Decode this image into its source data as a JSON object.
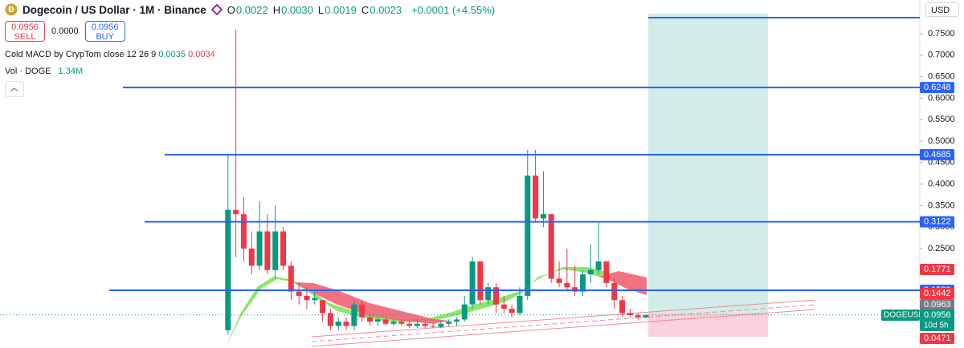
{
  "header": {
    "title": "Dogecoin / US Dollar · 1M · Binance",
    "ohlc": [
      {
        "key": "O",
        "value": "0.0022"
      },
      {
        "key": "H",
        "value": "0.0030"
      },
      {
        "key": "L",
        "value": "0.0019"
      },
      {
        "key": "C",
        "value": "0.0023"
      }
    ],
    "change": "+0.0001 (+4.55%)",
    "currency": "USD"
  },
  "trade": {
    "sell_price": "0.0956",
    "sell_label": "SELL",
    "spread": "0.0000",
    "buy_price": "0.0956",
    "buy_label": "BUY"
  },
  "indicators": [
    {
      "name": "Cold MACD by CrypTom close 12 26 9",
      "values": [
        "0.0035",
        "0.0034"
      ]
    },
    {
      "name": "Vol · DOGE",
      "values": [
        "1.34M"
      ]
    }
  ],
  "chart_data": {
    "type": "candlestick",
    "open": [
      0.003,
      0.06,
      0.34,
      0.33,
      0.25,
      0.21,
      0.29,
      0.2,
      0.29,
      0.21,
      0.15,
      0.14,
      0.13,
      0.13,
      0.1,
      0.07,
      0.08,
      0.07,
      0.12,
      0.09,
      0.08,
      0.085,
      0.075,
      0.08,
      0.075,
      0.07,
      0.075,
      0.07,
      0.068,
      0.075,
      0.08,
      0.085,
      0.12,
      0.22,
      0.13,
      0.16,
      0.12,
      0.11,
      0.1,
      0.14,
      0.42,
      0.32,
      0.33,
      0.18,
      0.17,
      0.16,
      0.15,
      0.19,
      0.2,
      0.22,
      0.17,
      0.13,
      0.1,
      0.095,
      0.09
    ],
    "high": [
      0.01,
      0.47,
      0.76,
      0.37,
      0.29,
      0.36,
      0.33,
      0.35,
      0.3,
      0.22,
      0.17,
      0.16,
      0.15,
      0.13,
      0.11,
      0.09,
      0.09,
      0.13,
      0.13,
      0.1,
      0.09,
      0.09,
      0.085,
      0.085,
      0.08,
      0.08,
      0.08,
      0.075,
      0.08,
      0.085,
      0.09,
      0.14,
      0.23,
      0.22,
      0.17,
      0.17,
      0.14,
      0.12,
      0.16,
      0.48,
      0.48,
      0.43,
      0.33,
      0.22,
      0.25,
      0.21,
      0.2,
      0.26,
      0.31,
      0.22,
      0.18,
      0.14,
      0.11,
      0.1,
      0.096
    ],
    "low": [
      0.002,
      0.05,
      0.23,
      0.22,
      0.19,
      0.2,
      0.19,
      0.18,
      0.2,
      0.13,
      0.12,
      0.11,
      0.12,
      0.08,
      0.06,
      0.06,
      0.06,
      0.06,
      0.08,
      0.07,
      0.07,
      0.07,
      0.07,
      0.07,
      0.065,
      0.065,
      0.065,
      0.065,
      0.065,
      0.07,
      0.07,
      0.08,
      0.11,
      0.12,
      0.12,
      0.1,
      0.1,
      0.09,
      0.095,
      0.13,
      0.31,
      0.3,
      0.17,
      0.16,
      0.15,
      0.14,
      0.14,
      0.17,
      0.19,
      0.16,
      0.11,
      0.09,
      0.09,
      0.085,
      0.088
    ],
    "close": [
      0.008,
      0.34,
      0.33,
      0.25,
      0.21,
      0.29,
      0.2,
      0.29,
      0.21,
      0.15,
      0.14,
      0.13,
      0.135,
      0.1,
      0.07,
      0.08,
      0.07,
      0.12,
      0.09,
      0.08,
      0.085,
      0.075,
      0.08,
      0.075,
      0.07,
      0.075,
      0.07,
      0.068,
      0.075,
      0.08,
      0.085,
      0.12,
      0.22,
      0.13,
      0.16,
      0.12,
      0.11,
      0.1,
      0.14,
      0.42,
      0.32,
      0.33,
      0.18,
      0.17,
      0.16,
      0.15,
      0.19,
      0.2,
      0.22,
      0.17,
      0.13,
      0.1,
      0.095,
      0.09,
      0.0956
    ],
    "up_color": "#089981",
    "down_color": "#f23645",
    "ylim": [
      0,
      0.8284
    ],
    "yticks": [
      {
        "value": 0.75,
        "label": "0.7500"
      },
      {
        "value": 0.7,
        "label": "0.7000"
      },
      {
        "value": 0.65,
        "label": "0.6500"
      },
      {
        "value": 0.6,
        "label": "0.6000"
      },
      {
        "value": 0.55,
        "label": "0.5500"
      },
      {
        "value": 0.5,
        "label": "0.5000"
      },
      {
        "value": 0.45,
        "label": "0.4500"
      },
      {
        "value": 0.4,
        "label": "0.4000"
      },
      {
        "value": 0.35,
        "label": "0.3500"
      },
      {
        "value": 0.3,
        "label": "0.3000"
      },
      {
        "value": 0.25,
        "label": "0.2500"
      }
    ],
    "levels": [
      0.7873,
      0.6248,
      0.4685,
      0.3122,
      0.1529
    ],
    "level_color": "#2962ff",
    "price_labels": [
      {
        "value": 0.1771,
        "color": "#f23645"
      },
      {
        "value": 0.1442,
        "color": "#f23645"
      },
      {
        "value": 0.0963,
        "color": "#787b86"
      },
      {
        "value": 0.0471,
        "color": "#f23645"
      }
    ],
    "last_price": {
      "symbol": "DOGEUSD",
      "value": 0.0956,
      "countdown": "10d 5h",
      "color": "#089981"
    }
  }
}
